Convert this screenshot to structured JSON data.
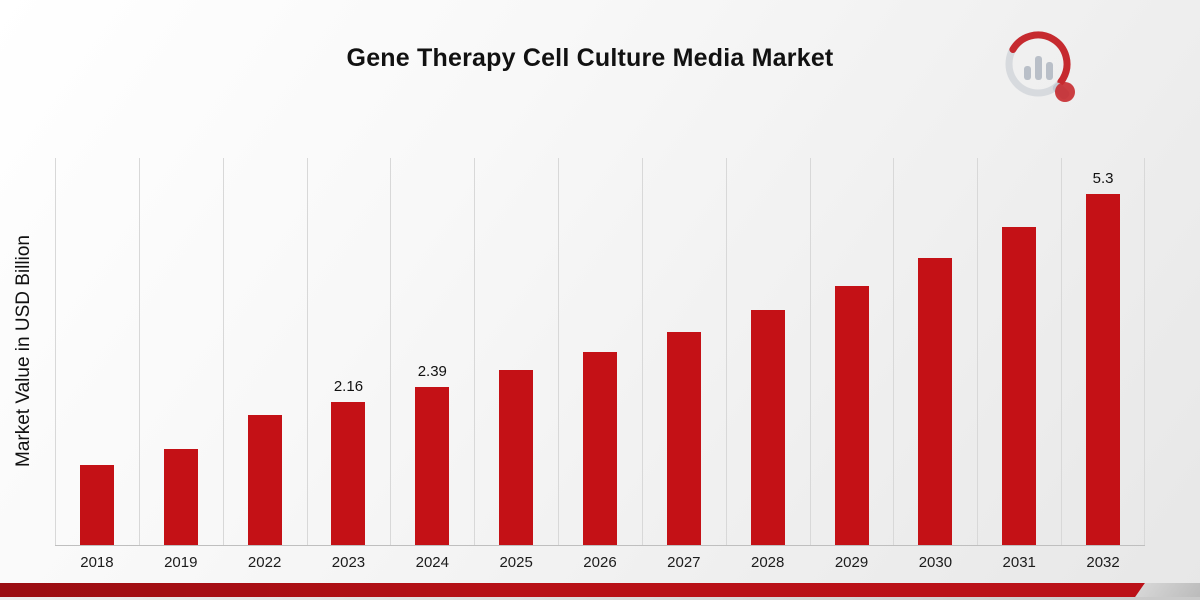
{
  "page": {
    "title": "Gene Therapy Cell Culture Media Market",
    "ylabel": "Market Value in USD Billion",
    "logo": "brand-chart-magnifier-logo"
  },
  "colors": {
    "bar_red": "#c41116",
    "footer_red": "#b3101a",
    "grid_gray": "#d8d8d8",
    "logo_gray": "#c3c8d0",
    "logo_red": "#c62a2f"
  },
  "chart_data": {
    "type": "bar",
    "title": "Gene Therapy Cell Culture Media Market",
    "xlabel": "",
    "ylabel": "Market Value in USD Billion",
    "categories": [
      "2018",
      "2019",
      "2022",
      "2023",
      "2024",
      "2025",
      "2026",
      "2027",
      "2028",
      "2029",
      "2030",
      "2031",
      "2032"
    ],
    "values": [
      1.21,
      1.45,
      1.97,
      2.16,
      2.39,
      2.65,
      2.92,
      3.22,
      3.56,
      3.92,
      4.34,
      4.8,
      5.3
    ],
    "data_labels": [
      null,
      null,
      null,
      "2.16",
      "2.39",
      null,
      null,
      null,
      null,
      null,
      null,
      null,
      "5.3"
    ],
    "ylim": [
      0,
      5.85
    ],
    "bar_color": "#c41116",
    "grid": "vertical-only",
    "legend": "none"
  }
}
